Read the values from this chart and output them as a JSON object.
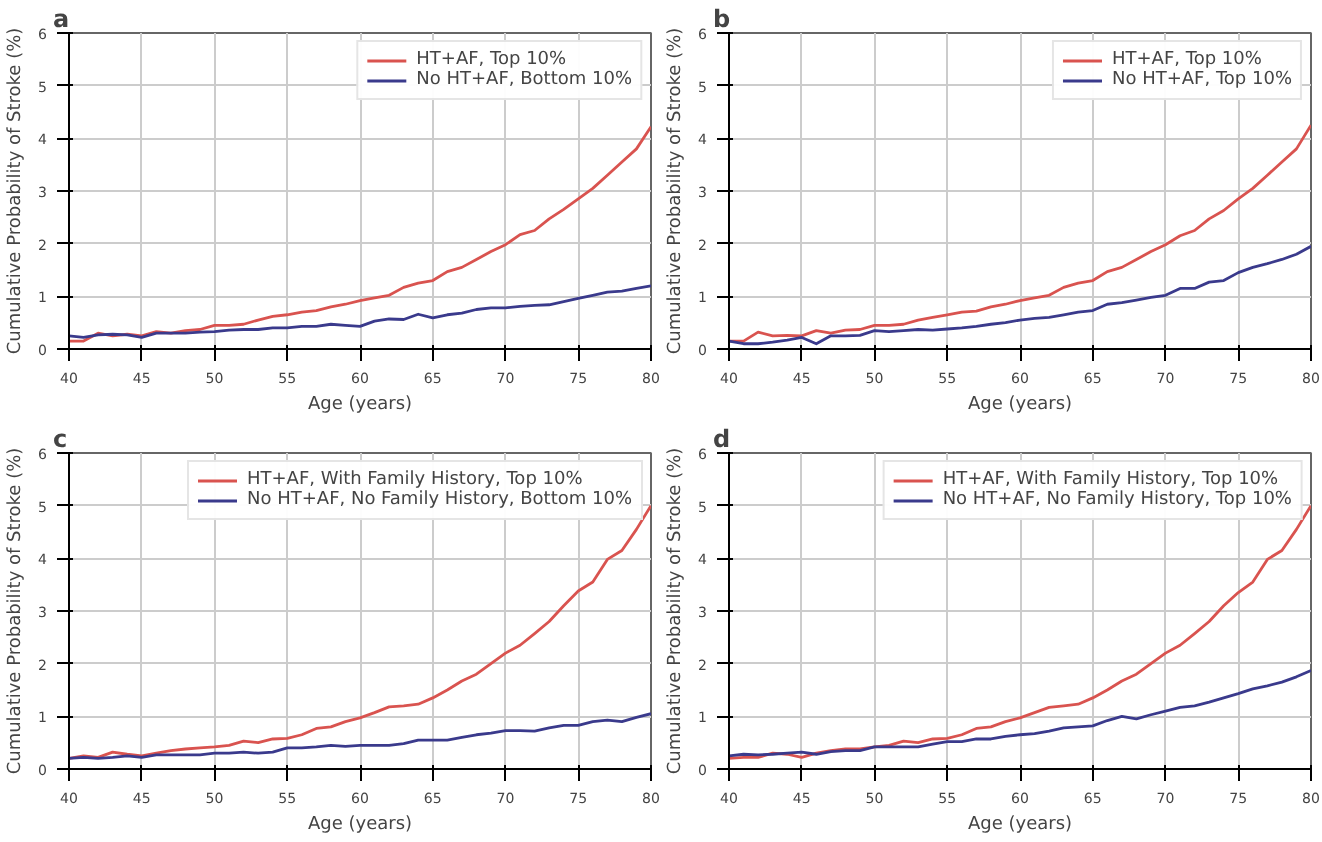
{
  "chart_data": [
    {
      "type": "line",
      "title": "a",
      "xlabel": "Age (years)",
      "ylabel": "Cumulative Probability of Stroke (%)",
      "xlim": [
        40,
        80
      ],
      "ylim": [
        0,
        6
      ],
      "xticks": [
        40,
        45,
        50,
        55,
        60,
        65,
        70,
        75,
        80
      ],
      "yticks": [
        0,
        1,
        2,
        3,
        4,
        5,
        6
      ],
      "grid": true,
      "legend": "top right",
      "line_style": "solid",
      "x": [
        40,
        41,
        42,
        43,
        44,
        45,
        46,
        47,
        48,
        49,
        50,
        51,
        52,
        53,
        54,
        55,
        56,
        57,
        58,
        59,
        60,
        61,
        62,
        63,
        64,
        65,
        66,
        67,
        68,
        69,
        70,
        71,
        72,
        73,
        74,
        75,
        76,
        77,
        78,
        79,
        80
      ],
      "series": [
        {
          "name": "HT+AF, Top 10%",
          "color": "#d9534f",
          "values": [
            0.15,
            0.15,
            0.3,
            0.25,
            0.28,
            0.25,
            0.33,
            0.3,
            0.35,
            0.37,
            0.45,
            0.45,
            0.47,
            0.55,
            0.62,
            0.65,
            0.7,
            0.73,
            0.8,
            0.85,
            0.92,
            0.97,
            1.02,
            1.17,
            1.25,
            1.3,
            1.47,
            1.55,
            1.7,
            1.85,
            1.98,
            2.17,
            2.25,
            2.47,
            2.65,
            2.85,
            3.05,
            3.3,
            3.55,
            3.8,
            4.22
          ]
        },
        {
          "name": "No HT+AF, Bottom 10%",
          "color": "#3a3a8c",
          "values": [
            0.25,
            0.22,
            0.27,
            0.28,
            0.27,
            0.22,
            0.3,
            0.3,
            0.3,
            0.32,
            0.33,
            0.36,
            0.37,
            0.37,
            0.4,
            0.4,
            0.43,
            0.43,
            0.47,
            0.45,
            0.43,
            0.53,
            0.57,
            0.56,
            0.66,
            0.59,
            0.65,
            0.68,
            0.75,
            0.78,
            0.78,
            0.81,
            0.83,
            0.84,
            0.9,
            0.96,
            1.02,
            1.08,
            1.1,
            1.15,
            1.2
          ]
        }
      ]
    },
    {
      "type": "line",
      "title": "b",
      "xlabel": "Age (years)",
      "ylabel": "Cumulative Probability of Stroke (%)",
      "xlim": [
        40,
        80
      ],
      "ylim": [
        0,
        6
      ],
      "xticks": [
        40,
        45,
        50,
        55,
        60,
        65,
        70,
        75,
        80
      ],
      "yticks": [
        0,
        1,
        2,
        3,
        4,
        5,
        6
      ],
      "grid": true,
      "legend": "top right",
      "line_style": "solid",
      "x": [
        40,
        41,
        42,
        43,
        44,
        45,
        46,
        47,
        48,
        49,
        50,
        51,
        52,
        53,
        54,
        55,
        56,
        57,
        58,
        59,
        60,
        61,
        62,
        63,
        64,
        65,
        66,
        67,
        68,
        69,
        70,
        71,
        72,
        73,
        74,
        75,
        76,
        77,
        78,
        79,
        80
      ],
      "series": [
        {
          "name": "HT+AF, Top 10%",
          "color": "#d9534f",
          "values": [
            0.15,
            0.15,
            0.32,
            0.25,
            0.26,
            0.25,
            0.35,
            0.3,
            0.36,
            0.37,
            0.45,
            0.45,
            0.47,
            0.55,
            0.6,
            0.65,
            0.7,
            0.72,
            0.8,
            0.85,
            0.92,
            0.97,
            1.02,
            1.17,
            1.25,
            1.3,
            1.47,
            1.55,
            1.7,
            1.85,
            1.98,
            2.15,
            2.25,
            2.47,
            2.63,
            2.85,
            3.05,
            3.3,
            3.55,
            3.8,
            4.25
          ]
        },
        {
          "name": "No HT+AF, Top 10%",
          "color": "#3a3a8c",
          "values": [
            0.15,
            0.1,
            0.1,
            0.13,
            0.17,
            0.22,
            0.1,
            0.25,
            0.25,
            0.26,
            0.35,
            0.33,
            0.35,
            0.37,
            0.36,
            0.38,
            0.4,
            0.43,
            0.47,
            0.5,
            0.55,
            0.58,
            0.6,
            0.65,
            0.7,
            0.73,
            0.85,
            0.88,
            0.93,
            0.98,
            1.02,
            1.15,
            1.15,
            1.27,
            1.3,
            1.45,
            1.55,
            1.62,
            1.7,
            1.8,
            1.95
          ]
        }
      ]
    },
    {
      "type": "line",
      "title": "c",
      "xlabel": "Age (years)",
      "ylabel": "Cumulative Probability of Stroke (%)",
      "xlim": [
        40,
        80
      ],
      "ylim": [
        0,
        6
      ],
      "xticks": [
        40,
        45,
        50,
        55,
        60,
        65,
        70,
        75,
        80
      ],
      "yticks": [
        0,
        1,
        2,
        3,
        4,
        5,
        6
      ],
      "grid": true,
      "legend": "top right",
      "line_style": "solid",
      "x": [
        40,
        41,
        42,
        43,
        44,
        45,
        46,
        47,
        48,
        49,
        50,
        51,
        52,
        53,
        54,
        55,
        56,
        57,
        58,
        59,
        60,
        61,
        62,
        63,
        64,
        65,
        66,
        67,
        68,
        69,
        70,
        71,
        72,
        73,
        74,
        75,
        76,
        77,
        78,
        79,
        80
      ],
      "series": [
        {
          "name": "HT+AF, With Family History, Top 10%",
          "color": "#d9534f",
          "values": [
            0.2,
            0.25,
            0.22,
            0.32,
            0.28,
            0.25,
            0.3,
            0.35,
            0.38,
            0.4,
            0.42,
            0.45,
            0.53,
            0.5,
            0.57,
            0.58,
            0.65,
            0.77,
            0.8,
            0.9,
            0.97,
            1.07,
            1.18,
            1.2,
            1.23,
            1.35,
            1.5,
            1.67,
            1.8,
            2.0,
            2.2,
            2.35,
            2.57,
            2.8,
            3.1,
            3.38,
            3.55,
            3.98,
            4.15,
            4.55,
            5.0
          ]
        },
        {
          "name": "No HT+AF, No Family History, Bottom 10%",
          "color": "#3a3a8c",
          "values": [
            0.2,
            0.22,
            0.2,
            0.22,
            0.25,
            0.22,
            0.27,
            0.27,
            0.27,
            0.27,
            0.3,
            0.3,
            0.32,
            0.3,
            0.32,
            0.4,
            0.4,
            0.42,
            0.45,
            0.43,
            0.45,
            0.45,
            0.45,
            0.48,
            0.55,
            0.55,
            0.55,
            0.6,
            0.65,
            0.68,
            0.73,
            0.73,
            0.72,
            0.78,
            0.83,
            0.83,
            0.9,
            0.93,
            0.9,
            0.98,
            1.05
          ]
        }
      ]
    },
    {
      "type": "line",
      "title": "d",
      "xlabel": "Age (years)",
      "ylabel": "Cumulative Probability of Stroke (%)",
      "xlim": [
        40,
        80
      ],
      "ylim": [
        0,
        6
      ],
      "xticks": [
        40,
        45,
        50,
        55,
        60,
        65,
        70,
        75,
        80
      ],
      "yticks": [
        0,
        1,
        2,
        3,
        4,
        5,
        6
      ],
      "grid": true,
      "legend": "top right",
      "line_style": "solid",
      "x": [
        40,
        41,
        42,
        43,
        44,
        45,
        46,
        47,
        48,
        49,
        50,
        51,
        52,
        53,
        54,
        55,
        56,
        57,
        58,
        59,
        60,
        61,
        62,
        63,
        64,
        65,
        66,
        67,
        68,
        69,
        70,
        71,
        72,
        73,
        74,
        75,
        76,
        77,
        78,
        79,
        80
      ],
      "series": [
        {
          "name": "HT+AF, With Family History, Top 10%",
          "color": "#d9534f",
          "values": [
            0.2,
            0.22,
            0.22,
            0.3,
            0.28,
            0.22,
            0.3,
            0.35,
            0.38,
            0.38,
            0.42,
            0.45,
            0.53,
            0.5,
            0.57,
            0.58,
            0.65,
            0.77,
            0.8,
            0.9,
            0.97,
            1.07,
            1.17,
            1.2,
            1.23,
            1.35,
            1.5,
            1.67,
            1.8,
            2.0,
            2.2,
            2.35,
            2.57,
            2.8,
            3.1,
            3.35,
            3.55,
            3.98,
            4.15,
            4.55,
            5.0
          ]
        },
        {
          "name": "No HT+AF, No Family History, Top 10%",
          "color": "#3a3a8c",
          "values": [
            0.25,
            0.28,
            0.27,
            0.28,
            0.3,
            0.32,
            0.28,
            0.33,
            0.35,
            0.35,
            0.42,
            0.42,
            0.42,
            0.42,
            0.47,
            0.52,
            0.52,
            0.57,
            0.57,
            0.62,
            0.65,
            0.67,
            0.72,
            0.78,
            0.8,
            0.82,
            0.92,
            1.0,
            0.95,
            1.03,
            1.1,
            1.17,
            1.2,
            1.27,
            1.35,
            1.43,
            1.52,
            1.58,
            1.65,
            1.75,
            1.87
          ]
        }
      ]
    }
  ]
}
